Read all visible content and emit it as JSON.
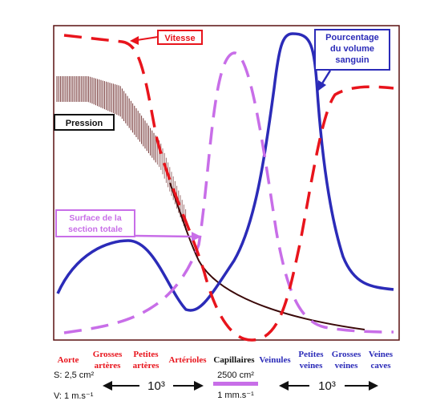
{
  "labels": {
    "vitesse": "Vitesse",
    "pourcentage": [
      "Pourcentage",
      "du volume",
      "sanguin"
    ],
    "pression": "Pression",
    "surface": [
      "Surface de la",
      "section totale"
    ]
  },
  "segments": [
    {
      "lines": [
        "Aorte"
      ],
      "color": "#e8141c"
    },
    {
      "lines": [
        "Grosses",
        "artères"
      ],
      "color": "#e8141c"
    },
    {
      "lines": [
        "Petites",
        "artères"
      ],
      "color": "#e8141c"
    },
    {
      "lines": [
        "Artérioles"
      ],
      "color": "#e8141c"
    },
    {
      "lines": [
        "Capillaires"
      ],
      "color": "#111111"
    },
    {
      "lines": [
        "Veinules"
      ],
      "color": "#2b2bb8"
    },
    {
      "lines": [
        "Petites",
        "veines"
      ],
      "color": "#2b2bb8"
    },
    {
      "lines": [
        "Grosses",
        "veines"
      ],
      "color": "#2b2bb8"
    },
    {
      "lines": [
        "Veines",
        "caves"
      ],
      "color": "#2b2bb8"
    }
  ],
  "bottom": {
    "s_label": "S: 2,5 cm²",
    "v_label": "V: 1 m.s⁻¹",
    "ratio_left": "10³",
    "cap_area": "2500 cm²",
    "cap_speed": "1 mm.s⁻¹",
    "ratio_right": "10³"
  },
  "colors": {
    "vitesse": "#e8141c",
    "volume": "#2b2bb8",
    "pression": "#5a1010",
    "surface": "#c86ee8",
    "frame": "#5a1010"
  }
}
